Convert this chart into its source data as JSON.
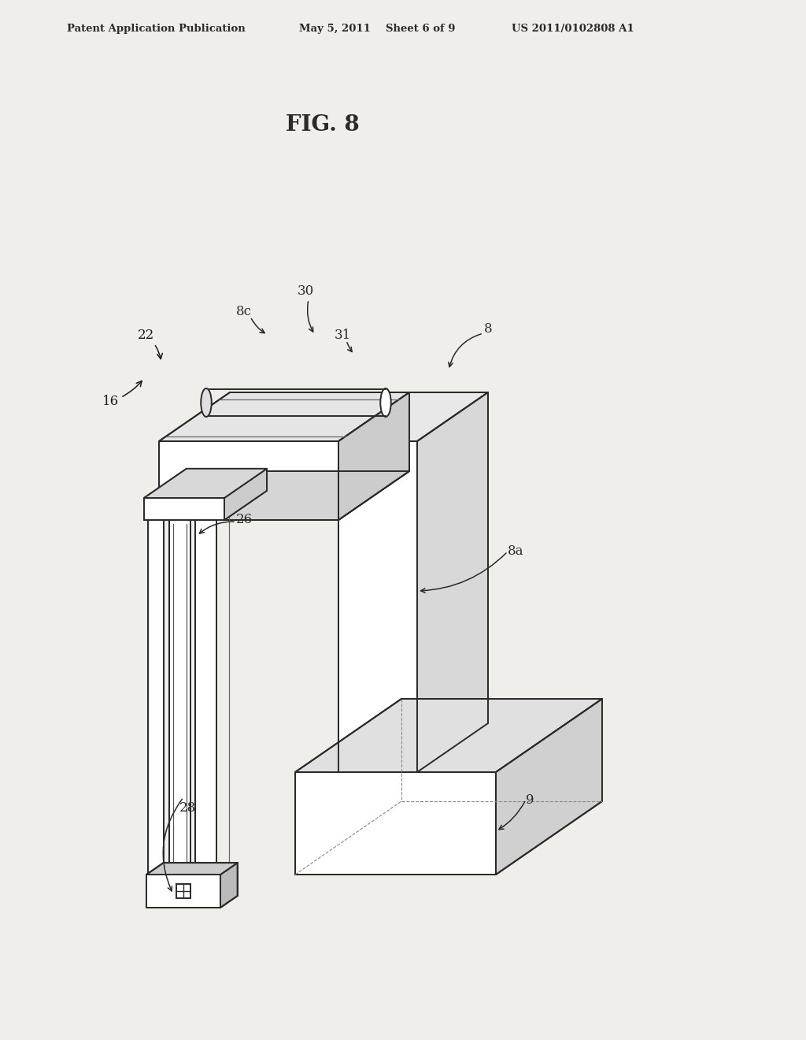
{
  "background_color": "#ffffff",
  "line_color": "#2a2a2a",
  "line_width": 1.4,
  "header_text": "Patent Application Publication",
  "header_date": "May 5, 2011",
  "header_sheet": "Sheet 6 of 9",
  "header_patent": "US 2011/0102808 A1",
  "fig_label": "FIG. 8",
  "paper_color": "#f0eeea"
}
